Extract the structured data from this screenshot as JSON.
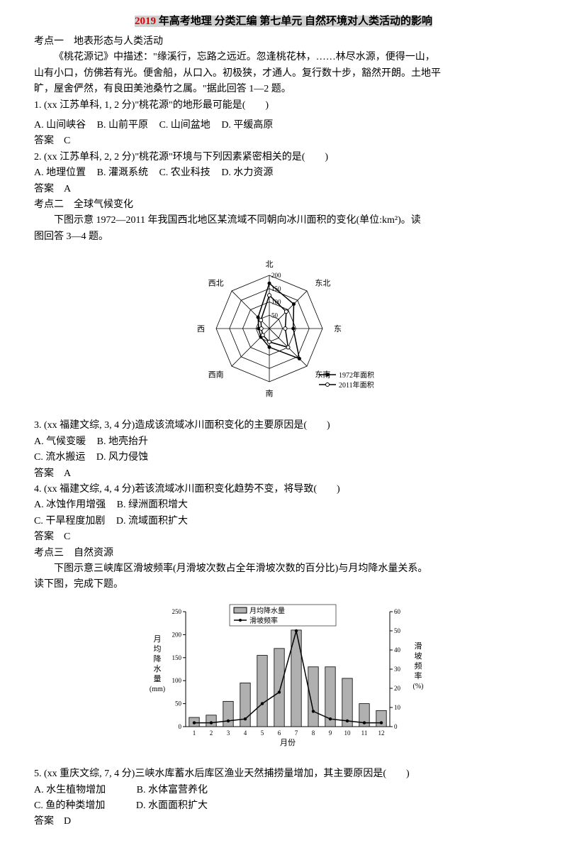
{
  "title_red": "2019",
  "title_rest": " 年高考地理 分类汇编 第七单元 自然环境对人类活动的影响",
  "kaodian1": "考点一　地表形态与人类活动",
  "passage1a": "《桃花源记》中描述：\"缘溪行，忘路之远近。忽逢桃花林，……林尽水源，便得一山，",
  "passage1b": "山有小口，仿佛若有光。便舍船，从口入。初极狭，才通人。复行数十步，豁然开朗。土地平",
  "passage1c": "旷，屋舍俨然，有良田美池桑竹之属。\"据此回答 1—2 题。",
  "q1": "1. (xx 江苏单科, 1, 2 分)\"桃花源\"的地形最可能是(　　)",
  "q1_opts": {
    "a": "A. 山间峡谷",
    "b": "B. 山前平原",
    "c": "C. 山间盆地",
    "d": "D. 平缓高原"
  },
  "ans1": "答案　C",
  "q2": "2. (xx 江苏单科, 2, 2 分)\"桃花源\"环境与下列因素紧密相关的是(　　)",
  "q2_opts": {
    "a": "A. 地理位置",
    "b": "B. 灌溉系统",
    "c": "C. 农业科技",
    "d": "D. 水力资源"
  },
  "ans2": "答案　A",
  "kaodian2": "考点二　全球气候变化",
  "passage2a": "下图示意 1972—2011 年我国西北地区某流域不同朝向冰川面积的变化(单位:km²)。读",
  "passage2b": "图回答 3—4 题。",
  "radar": {
    "dirs": [
      "北",
      "东北",
      "东",
      "东南",
      "南",
      "西南",
      "西",
      "西北"
    ],
    "rings": [
      50,
      100,
      150,
      200
    ],
    "ring_labels": [
      "50",
      "100",
      "150",
      "200"
    ],
    "series1972": [
      170,
      130,
      90,
      160,
      70,
      45,
      40,
      60
    ],
    "series2011": [
      125,
      90,
      60,
      100,
      50,
      35,
      30,
      45
    ],
    "legend1": "1972年面积",
    "legend2": "2011年面积",
    "stroke": "#000000",
    "fill1972": "#000000",
    "fill2011": "#ffffff",
    "bg": "#ffffff"
  },
  "q3": "3. (xx 福建文综, 3, 4 分)造成该流域冰川面积变化的主要原因是(　　)",
  "q3_opts": {
    "a": "A. 气候变暖",
    "b": "B. 地壳抬升",
    "c": "C. 流水搬运",
    "d": "D. 风力侵蚀"
  },
  "ans3": "答案　A",
  "q4": "4. (xx 福建文综, 4, 4 分)若该流域冰川面积变化趋势不变，将导致(　　)",
  "q4_opts": {
    "a": "A. 冰蚀作用增强",
    "b": "B. 绿洲面积增大",
    "c": "C. 干旱程度加剧",
    "d": "D. 流域面积扩大"
  },
  "ans4": "答案　C",
  "kaodian3": "考点三　自然资源",
  "passage3a": "下图示意三峡库区滑坡频率(月滑坡次数占全年滑坡次数的百分比)与月均降水量关系。",
  "passage3b": "读下图，完成下题。",
  "chart": {
    "ylabel_left_a": "月",
    "ylabel_left_b": "均",
    "ylabel_left_c": "降",
    "ylabel_left_d": "水",
    "ylabel_left_e": "量",
    "ylabel_left_unit": "(mm)",
    "ylabel_right_a": "滑",
    "ylabel_right_b": "坡",
    "ylabel_right_c": "频",
    "ylabel_right_d": "率",
    "ylabel_right_unit": "(%)",
    "xlabel": "月份",
    "x_ticks": [
      "1",
      "2",
      "3",
      "4",
      "5",
      "6",
      "7",
      "8",
      "9",
      "10",
      "11",
      "12"
    ],
    "y_left_max": 250,
    "y_left_ticks": [
      0,
      50,
      100,
      150,
      200,
      250
    ],
    "y_right_max": 60,
    "y_right_ticks": [
      0,
      10,
      20,
      30,
      40,
      50,
      60
    ],
    "bars": [
      20,
      25,
      55,
      95,
      155,
      170,
      210,
      130,
      130,
      105,
      50,
      35
    ],
    "line": [
      2,
      2,
      3,
      4,
      12,
      18,
      50,
      8,
      4,
      3,
      2,
      2
    ],
    "bar_fill": "#b0b0b0",
    "bar_stroke": "#000000",
    "line_stroke": "#000000",
    "marker_fill": "#000000",
    "legend1": "月均降水量",
    "legend2": "滑坡频率",
    "grid_color": "#cccccc"
  },
  "q5": "5. (xx 重庆文综, 7, 4 分)三峡水库蓄水后库区渔业天然捕捞量增加，其主要原因是(　　)",
  "q5_opts": {
    "a": "A. 水生植物增加",
    "b": "B. 水体富营养化",
    "c": "C. 鱼的种类增加",
    "d": "D. 水面面积扩大"
  },
  "ans5": "答案　D"
}
